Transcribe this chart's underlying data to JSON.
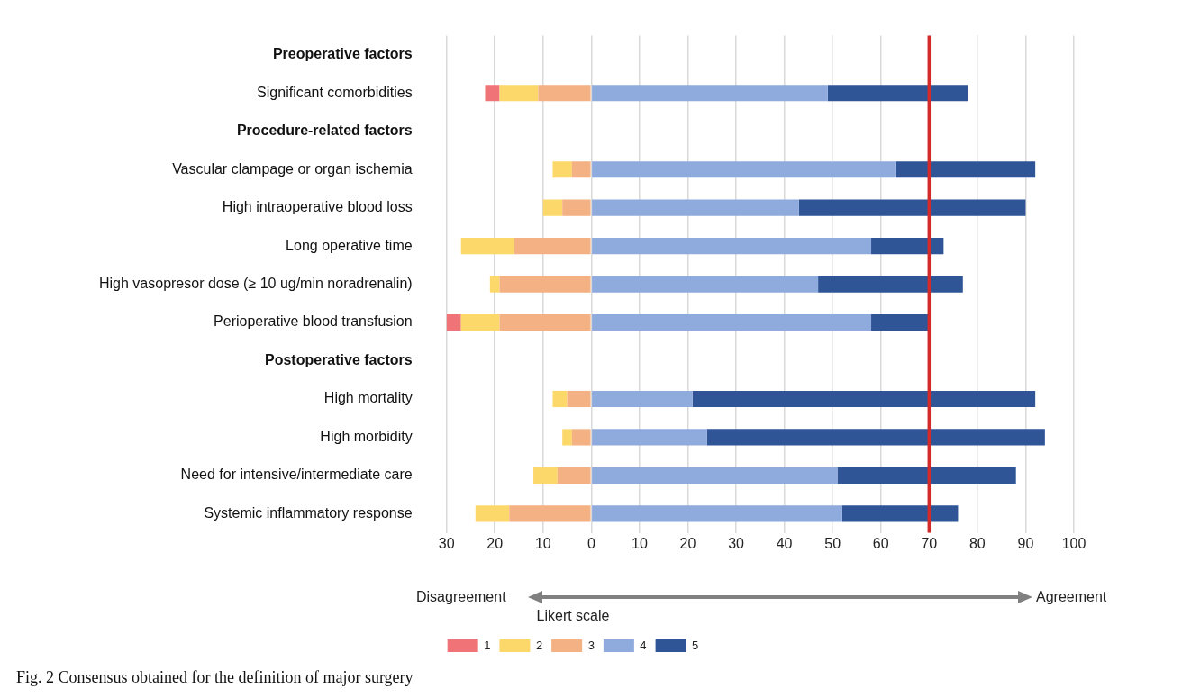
{
  "chart_data": {
    "type": "bar",
    "orientation": "horizontal",
    "stacked": true,
    "categories": [
      "Preoperative factors",
      "Significant comorbidities",
      "Procedure-related factors",
      "Vascular clampage or organ ischemia",
      "High intraoperative blood loss",
      "Long operative time",
      "High vasopresor dose (≥ 10 ug/min noradrenalin)",
      "Perioperative blood transfusion",
      "Postoperative factors",
      "High mortality",
      "High morbidity",
      "Need for intensive/intermediate care",
      "Systemic inflammatory response"
    ],
    "series": [
      {
        "name": "1",
        "color": "#f07378",
        "values": [
          null,
          -3,
          null,
          0,
          0,
          0,
          0,
          -3,
          null,
          0,
          0,
          0,
          0
        ]
      },
      {
        "name": "2",
        "color": "#fcd86a",
        "values": [
          null,
          -8,
          null,
          -4,
          -4,
          -11,
          -2,
          -8,
          null,
          -3,
          -2,
          -5,
          -7
        ]
      },
      {
        "name": "3",
        "color": "#f4b183",
        "values": [
          null,
          -11,
          null,
          -4,
          -6,
          -16,
          -19,
          -19,
          null,
          -5,
          -4,
          -7,
          -17
        ]
      },
      {
        "name": "4",
        "color": "#8faadc",
        "values": [
          null,
          49,
          null,
          63,
          43,
          58,
          47,
          58,
          null,
          21,
          24,
          51,
          52
        ]
      },
      {
        "name": "5",
        "color": "#2f5597",
        "values": [
          null,
          29,
          null,
          29,
          47,
          15,
          30,
          12,
          null,
          71,
          70,
          37,
          24
        ]
      }
    ],
    "xlim": [
      -30,
      100
    ],
    "xticks": [
      {
        "value": -30,
        "label": "30"
      },
      {
        "value": -20,
        "label": "20"
      },
      {
        "value": -10,
        "label": "10"
      },
      0,
      10,
      20,
      30,
      40,
      50,
      60,
      70,
      80,
      90,
      100
    ],
    "grid": "x",
    "legend": "bottom",
    "legend_title": "Likert scale",
    "ref_lines": [
      {
        "axis": "x",
        "value": 70,
        "color": "#d42a2a"
      }
    ],
    "annotations": [
      "Disagreement",
      "Agreement",
      "Fig. 2  Consensus obtained for the definition of major surgery"
    ]
  }
}
